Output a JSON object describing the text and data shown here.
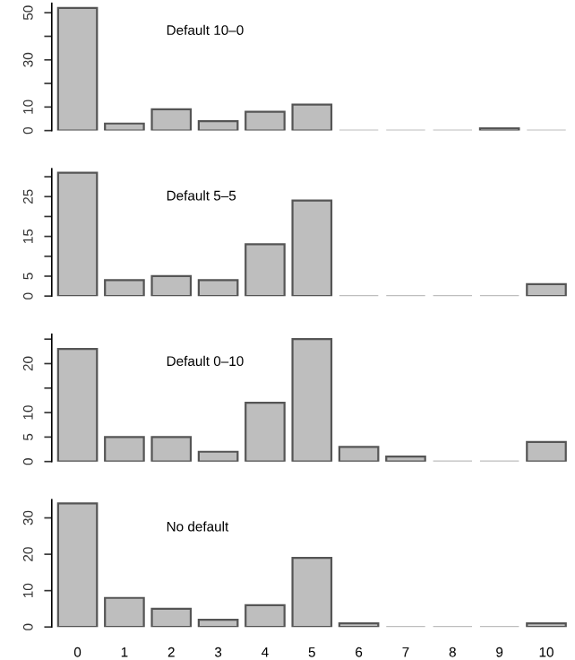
{
  "chart_data": [
    {
      "type": "bar",
      "categories": [
        "0",
        "1",
        "2",
        "3",
        "4",
        "5",
        "6",
        "7",
        "8",
        "9",
        "10"
      ],
      "values": [
        52,
        3,
        9,
        4,
        8,
        11,
        0,
        0,
        0,
        1,
        0
      ],
      "color": "#bebebe",
      "ylim": [
        0,
        54
      ],
      "yticks": [
        0,
        10,
        {
          "value": 20,
          "label": null
        },
        30,
        {
          "value": 40,
          "label": null
        },
        50
      ],
      "tick_labels": "y",
      "annotations": [
        "Default 10–0"
      ]
    },
    {
      "type": "bar",
      "categories": [
        "0",
        "1",
        "2",
        "3",
        "4",
        "5",
        "6",
        "7",
        "8",
        "9",
        "10"
      ],
      "values": [
        31,
        4,
        5,
        4,
        13,
        24,
        0,
        0,
        0,
        0,
        3
      ],
      "color": "#bebebe",
      "ylim": [
        0,
        32
      ],
      "yticks": [
        0,
        5,
        {
          "value": 10,
          "label": null
        },
        15,
        {
          "value": 20,
          "label": null
        },
        25,
        {
          "value": 30,
          "label": null
        }
      ],
      "tick_labels": "y",
      "annotations": [
        "Default 5–5"
      ]
    },
    {
      "type": "bar",
      "categories": [
        "0",
        "1",
        "2",
        "3",
        "4",
        "5",
        "6",
        "7",
        "8",
        "9",
        "10"
      ],
      "values": [
        23,
        5,
        5,
        2,
        12,
        25,
        3,
        1,
        0,
        0,
        4
      ],
      "color": "#bebebe",
      "ylim": [
        0,
        26
      ],
      "yticks": [
        0,
        5,
        10,
        {
          "value": 15,
          "label": null
        },
        20,
        {
          "value": 25,
          "label": null
        }
      ],
      "tick_labels": "y",
      "annotations": [
        "Default 0–10"
      ]
    },
    {
      "type": "bar",
      "categories": [
        "0",
        "1",
        "2",
        "3",
        "4",
        "5",
        "6",
        "7",
        "8",
        "9",
        "10"
      ],
      "values": [
        34,
        8,
        5,
        2,
        6,
        19,
        1,
        0,
        0,
        0,
        1
      ],
      "color": "#bebebe",
      "ylim": [
        0,
        35
      ],
      "yticks": [
        0,
        10,
        20,
        30
      ],
      "annotations": [
        "No default"
      ]
    }
  ]
}
